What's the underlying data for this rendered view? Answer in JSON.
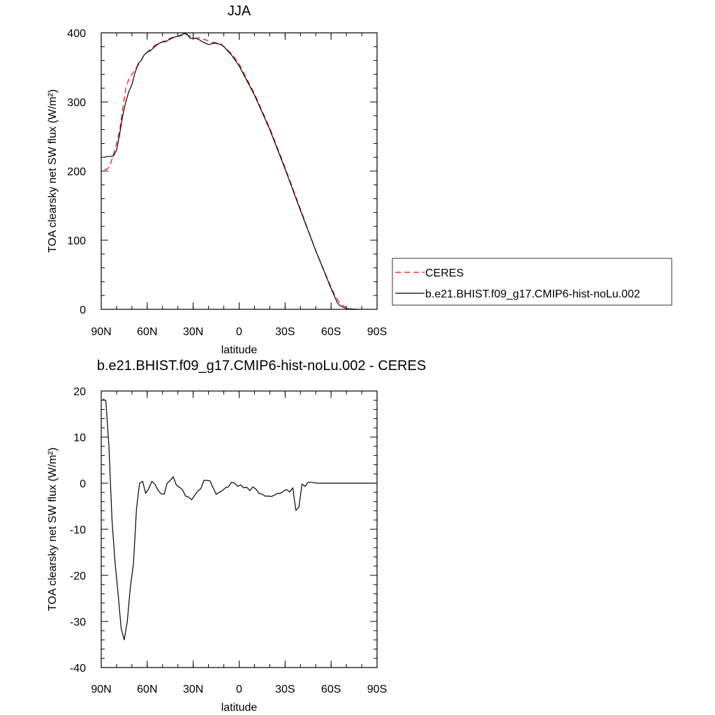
{
  "chart_data": [
    {
      "type": "line",
      "title": "JJA",
      "xlabel": "latitude",
      "ylabel": "TOA clearsky net SW flux (W/m²)",
      "ylim": [
        0,
        400
      ],
      "y_ticks": [
        0,
        100,
        200,
        300,
        400
      ],
      "x_ticks": [
        90,
        60,
        30,
        0,
        -30,
        -60,
        -90
      ],
      "x_tick_labels": [
        "90N",
        "60N",
        "30N",
        "0",
        "30S",
        "60S",
        "90S"
      ],
      "legend": {
        "placement": "right",
        "entries": [
          "CERES",
          "b.e21.BHIST.f09_g17.CMIP6-hist-noLu.002"
        ]
      },
      "series": [
        {
          "name": "CERES",
          "color": "#ff0000",
          "dash": "dashed",
          "x": [
            88,
            86,
            84,
            82,
            80,
            78,
            76,
            74,
            72,
            70,
            68,
            66,
            64,
            62,
            60,
            58,
            56,
            54,
            52,
            50,
            48,
            46,
            44,
            42,
            40,
            38,
            36,
            34,
            32,
            30,
            28,
            26,
            24,
            22,
            20,
            18,
            16,
            14,
            12,
            10,
            5,
            0,
            -10,
            -20,
            -30,
            -40,
            -50,
            -60,
            -62,
            -64,
            -66,
            -68,
            -70,
            -72,
            -74,
            -76,
            -78
          ],
          "y": [
            202,
            203,
            210,
            225,
            240,
            258,
            290,
            320,
            333,
            340,
            347,
            353,
            360,
            368,
            372,
            376,
            380,
            383,
            385,
            387,
            389,
            391,
            393,
            394,
            395,
            397,
            398,
            397,
            395,
            393,
            392,
            393,
            391,
            390,
            388,
            386,
            386,
            385,
            384,
            380,
            370,
            355,
            312,
            262,
            205,
            145,
            85,
            32,
            22,
            15,
            8,
            5,
            3,
            1,
            0.5,
            0,
            0
          ]
        },
        {
          "name": "b.e21.BHIST.f09_g17.CMIP6-hist-noLu.002",
          "color": "#000000",
          "dash": "solid",
          "x": [
            88,
            86,
            84,
            82,
            80,
            78,
            76,
            74,
            72,
            70,
            68,
            66,
            64,
            62,
            60,
            58,
            56,
            54,
            52,
            50,
            48,
            46,
            44,
            42,
            40,
            38,
            36,
            34,
            32,
            30,
            28,
            26,
            24,
            22,
            20,
            18,
            16,
            14,
            12,
            10,
            5,
            0,
            -10,
            -20,
            -30,
            -40,
            -50,
            -60,
            -62,
            -64,
            -66,
            -68,
            -70,
            -72,
            -74,
            -76,
            -78
          ],
          "y": [
            220,
            221,
            221,
            222,
            230,
            253,
            280,
            300,
            315,
            325,
            342,
            355,
            360,
            368,
            372,
            374,
            378,
            382,
            385,
            387,
            387,
            390,
            392,
            394,
            395,
            396,
            399,
            398,
            392,
            392,
            392,
            390,
            387,
            385,
            383,
            384,
            385,
            384,
            383,
            380,
            368,
            352,
            310,
            260,
            203,
            143,
            85,
            30,
            20,
            10,
            5,
            3,
            1,
            0.5,
            0,
            0,
            0
          ]
        }
      ]
    },
    {
      "type": "line",
      "title": "b.e21.BHIST.f09_g17.CMIP6-hist-noLu.002 - CERES",
      "xlabel": "latitude",
      "ylabel": "TOA clearsky net SW flux (W/m²)",
      "ylim": [
        -40,
        20
      ],
      "y_ticks": [
        -40,
        -30,
        -20,
        -10,
        0,
        10,
        20
      ],
      "x_ticks": [
        90,
        60,
        30,
        0,
        -30,
        -60,
        -90
      ],
      "x_tick_labels": [
        "90N",
        "60N",
        "30N",
        "0",
        "30S",
        "60S",
        "90S"
      ],
      "series": [
        {
          "color": "#000000",
          "dash": "solid",
          "x": [
            89,
            87,
            85,
            83,
            81,
            79,
            77,
            75,
            73,
            71,
            69,
            67,
            65,
            63,
            61,
            59,
            57,
            55,
            53,
            51,
            49,
            47,
            45,
            43,
            41,
            39,
            37,
            35,
            33,
            31,
            29,
            27,
            25,
            23,
            21,
            19,
            17,
            15,
            13,
            11,
            9,
            7,
            5,
            3,
            1,
            -1,
            -3,
            -5,
            -7,
            -9,
            -11,
            -13,
            -15,
            -17,
            -19,
            -21,
            -23,
            -25,
            -27,
            -29,
            -31,
            -33,
            -35,
            -37,
            -39,
            -41,
            -43,
            -45,
            -47,
            -49,
            -51,
            -53,
            -55,
            -57,
            -59,
            -61,
            -63,
            -65,
            -67,
            -69,
            -71,
            -73,
            -75,
            -77,
            -79,
            -81,
            -83,
            -85,
            -87,
            -89
          ],
          "y": [
            18.3,
            17.9,
            8.0,
            -8.0,
            -17.2,
            -24.0,
            -31.5,
            -34.0,
            -30.0,
            -22.5,
            -17.5,
            -5.5,
            0.0,
            0.4,
            -2.2,
            -1.2,
            0.4,
            -0.2,
            -1.5,
            -2.3,
            -2.4,
            0.0,
            0.6,
            1.4,
            -0.4,
            -0.9,
            -1.4,
            -2.8,
            -3.0,
            -3.6,
            -2.6,
            -1.7,
            -1.2,
            0.6,
            0.6,
            0.5,
            -1.0,
            -2.4,
            -2.0,
            -1.6,
            -1.0,
            -0.8,
            0.2,
            0.0,
            -0.7,
            -0.4,
            -1.0,
            -0.9,
            -1.6,
            -0.8,
            -1.3,
            -2.2,
            -2.4,
            -2.8,
            -2.8,
            -2.9,
            -2.6,
            -2.2,
            -2.2,
            -1.7,
            -1.4,
            -1.9,
            -1.0,
            -5.9,
            -5.2,
            -0.2,
            -0.7,
            0.2,
            0.2,
            0.1,
            0.0,
            0.0,
            0.0,
            0.0,
            0.0,
            0.0,
            0.0,
            0.0,
            0.0,
            0.0,
            0.0,
            0.0,
            0.0,
            0.0,
            0.0,
            0.0,
            0.0,
            0.0,
            0.0,
            0.0
          ]
        }
      ]
    }
  ]
}
